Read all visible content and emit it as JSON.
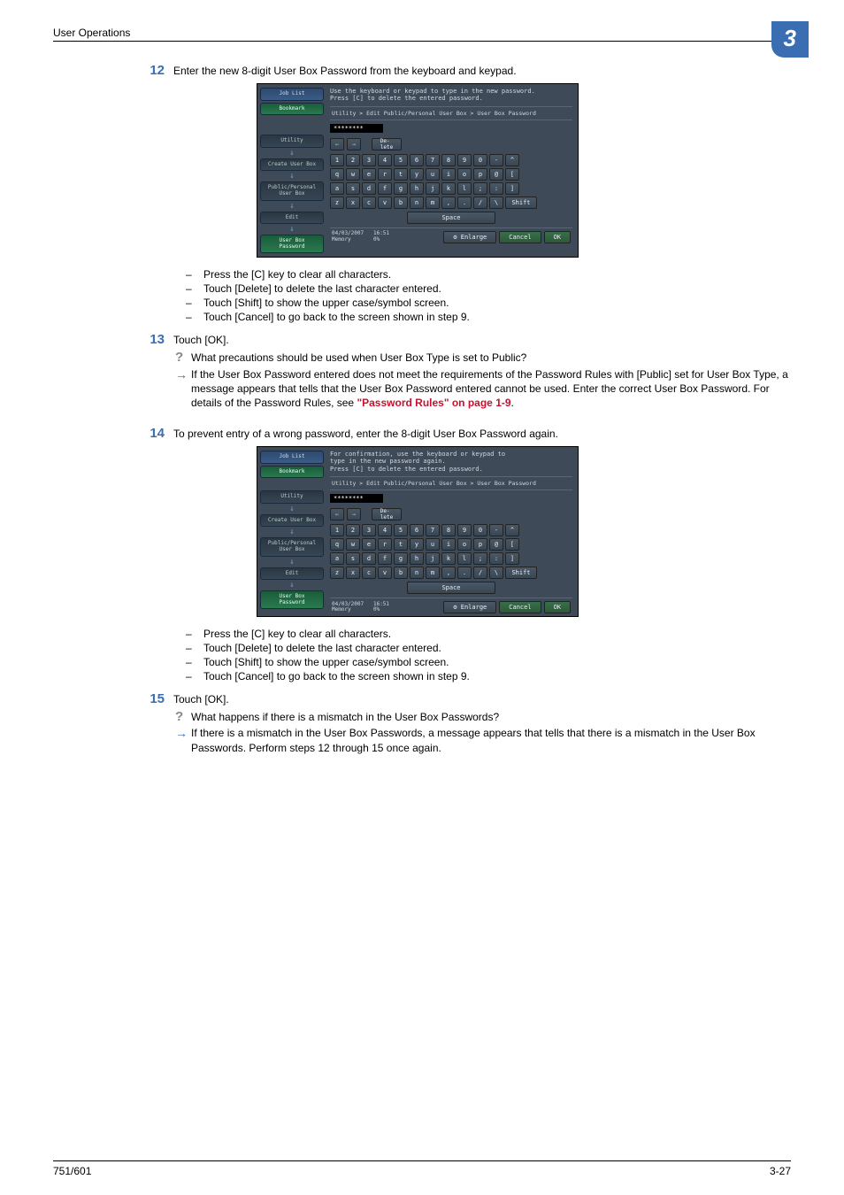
{
  "header": {
    "title": "User Operations",
    "chapter": "3"
  },
  "footer": {
    "left": "751/601",
    "right": "3-27"
  },
  "steps": {
    "s12": {
      "num": "12",
      "text": "Enter the new 8-digit User Box Password from the keyboard and keypad."
    },
    "s13": {
      "num": "13",
      "text": "Touch [OK]."
    },
    "s14": {
      "num": "14",
      "text": "To prevent entry of a wrong password, enter the 8-digit User Box Password again."
    },
    "s15": {
      "num": "15",
      "text": "Touch [OK]."
    }
  },
  "bullets_a": [
    "Press the [C] key to clear all characters.",
    "Touch [Delete] to delete the last character entered.",
    "Touch [Shift] to show the upper case/symbol screen.",
    "Touch [Cancel] to go back to the screen shown in step 9."
  ],
  "qa13": {
    "q": "What precautions should be used when User Box Type is set to Public?",
    "a": "If the User Box Password entered does not meet the requirements of the Password Rules with [Public] set for User Box Type, a message appears that tells that the User Box Password entered cannot be used. Enter the correct User Box Password. For details of the Password Rules, see ",
    "link": "\"Password Rules\" on page 1-9",
    "a_end": "."
  },
  "qa15": {
    "q": "What happens if there is a mismatch in the User Box Passwords?",
    "a": "If there is a mismatch in the User Box Passwords, a message appears that tells that there is a mismatch in the User Box Passwords. Perform steps 12 through 15 once again."
  },
  "shot": {
    "side": {
      "job_list": "Job List",
      "bookmark": "Bookmark",
      "utility": "Utility",
      "create": "Create User Box",
      "pubpers": "Public/Personal\nUser Box",
      "edit": "Edit",
      "password": "User Box\nPassword"
    },
    "instr1": "Use the keyboard or keypad to type in the new password.\nPress [C] to delete the entered password.",
    "instr2": "For confirmation, use the keyboard or keypad to\ntype in the new password again.\nPress [C] to delete the entered password.",
    "crumb": "Utility > Edit Public/Personal User Box > User Box Password",
    "password_masked": "********",
    "delete": "De-\nlete",
    "row1": [
      "1",
      "2",
      "3",
      "4",
      "5",
      "6",
      "7",
      "8",
      "9",
      "0",
      "-",
      "^"
    ],
    "row2": [
      "q",
      "w",
      "e",
      "r",
      "t",
      "y",
      "u",
      "i",
      "o",
      "p",
      "@",
      "["
    ],
    "row3": [
      "a",
      "s",
      "d",
      "f",
      "g",
      "h",
      "j",
      "k",
      "l",
      ";",
      ":",
      "]"
    ],
    "row4": [
      "z",
      "x",
      "c",
      "v",
      "b",
      "n",
      "m",
      ",",
      ".",
      "/",
      "\\"
    ],
    "shift": "Shift",
    "space": "Space",
    "date": "04/03/2007",
    "time": "16:51",
    "memory": "Memory",
    "mem_pct": "0%",
    "enlarge": "Enlarge",
    "cancel": "Cancel",
    "ok": "OK"
  }
}
